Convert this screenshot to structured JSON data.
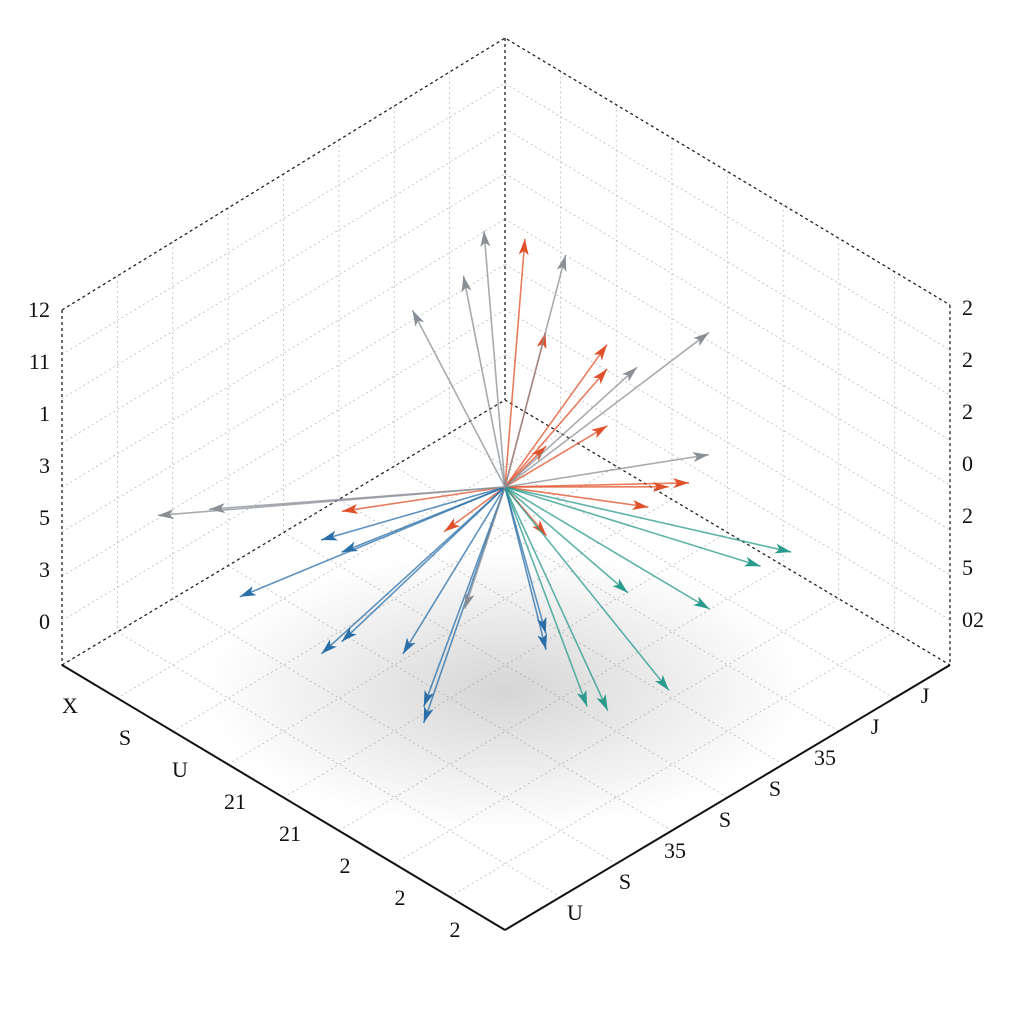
{
  "chart_data": {
    "type": "quiver3d",
    "left_labels": [
      "12",
      "11",
      "1",
      "3",
      "5",
      "3",
      "0"
    ],
    "right_labels": [
      "2",
      "2",
      "2",
      "0",
      "2",
      "5",
      "02"
    ],
    "front_left_labels": [
      "X",
      "S",
      "U",
      "21",
      "21",
      "2",
      "2",
      "2"
    ],
    "front_right_labels": [
      "U",
      "S",
      "35",
      "S",
      "S",
      "35",
      "J",
      "J"
    ],
    "series": [
      {
        "color": "#e0502a",
        "u": [
          0.1,
          -0.3,
          0.5,
          -0.6,
          0.2,
          -0.1,
          0.6,
          0.3,
          -0.4,
          0.0,
          0.7,
          -0.2
        ],
        "v": [
          0.6,
          0.2,
          0.7,
          -0.5,
          0.9,
          0.4,
          0.3,
          0.5,
          -0.2,
          0.8,
          -0.1,
          0.7
        ],
        "w": [
          0.9,
          0.8,
          0.6,
          0.7,
          0.7,
          0.95,
          0.4,
          0.85,
          0.5,
          0.6,
          0.3,
          0.4
        ]
      },
      {
        "color": "#2a6fa8",
        "u": [
          0.5,
          0.8,
          0.2,
          -0.1,
          0.6,
          0.9,
          0.3,
          0.7,
          0.4,
          0.1
        ],
        "v": [
          -0.3,
          -0.1,
          -0.6,
          0.1,
          0.2,
          -0.4,
          -0.2,
          0.3,
          -0.5,
          0.3
        ],
        "w": [
          -0.8,
          -0.5,
          -0.7,
          -0.9,
          -0.85,
          -0.3,
          -0.95,
          -0.6,
          -0.4,
          -0.7
        ]
      },
      {
        "color": "#2a9a8c",
        "u": [
          -0.2,
          0.1,
          -0.5,
          0.3,
          0.0,
          -0.3,
          0.4
        ],
        "v": [
          0.8,
          0.9,
          0.9,
          0.7,
          0.6,
          0.95,
          0.9
        ],
        "w": [
          -0.3,
          -0.5,
          -0.1,
          -0.6,
          -0.2,
          0.0,
          -0.4
        ]
      },
      {
        "color": "#8a8f96",
        "u": [
          -0.9,
          -0.7,
          0.9,
          -0.8,
          -0.95,
          0.8,
          -0.6,
          0.95,
          -0.5,
          -0.9
        ],
        "v": [
          -0.6,
          -0.9,
          -0.8,
          0.2,
          -0.3,
          0.6,
          -0.7,
          -0.5,
          -0.95,
          0.1
        ],
        "w": [
          0.3,
          0.1,
          -0.1,
          0.5,
          -0.2,
          0.3,
          0.6,
          0.2,
          0.0,
          -0.4
        ]
      }
    ]
  }
}
